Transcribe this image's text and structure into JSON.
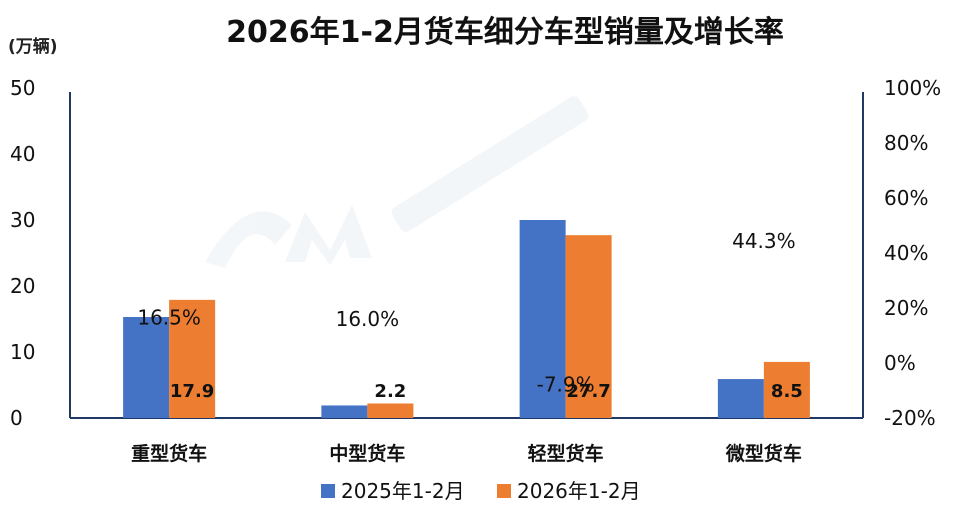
{
  "chart_data": {
    "type": "bar",
    "title": "2026年1-2月货车细分车型销量及增长率",
    "y_unit": "(万辆)",
    "ylim": [
      0,
      50
    ],
    "y_ticks": [
      "0",
      "10",
      "20",
      "30",
      "40",
      "50"
    ],
    "y2lim": [
      -20,
      100
    ],
    "y2_ticks": [
      "-20%",
      "0%",
      "20%",
      "40%",
      "60%",
      "80%",
      "100%"
    ],
    "categories": [
      "重型货车",
      "中型货车",
      "轻型货车",
      "微型货车"
    ],
    "series": [
      {
        "name": "2025年1-2月",
        "values": [
          15.3,
          1.9,
          30.0,
          5.9
        ]
      },
      {
        "name": "2026年1-2月",
        "values": [
          17.9,
          2.2,
          27.7,
          8.5
        ]
      }
    ],
    "value_labels": [
      "17.9",
      "2.2",
      "27.7",
      "8.5"
    ],
    "growth_labels": [
      "16.5%",
      "16.0%",
      "-7.9%",
      "44.3%"
    ],
    "growth_rates": [
      16.5,
      16.0,
      -7.9,
      44.3
    ],
    "legend_position": "bottom",
    "grid": false,
    "colors": {
      "series_2025": "#4472c4",
      "series_2026": "#ed7d31",
      "negative_rate": "#e8312f",
      "text": "#111111",
      "axis": "#1f3864"
    }
  }
}
